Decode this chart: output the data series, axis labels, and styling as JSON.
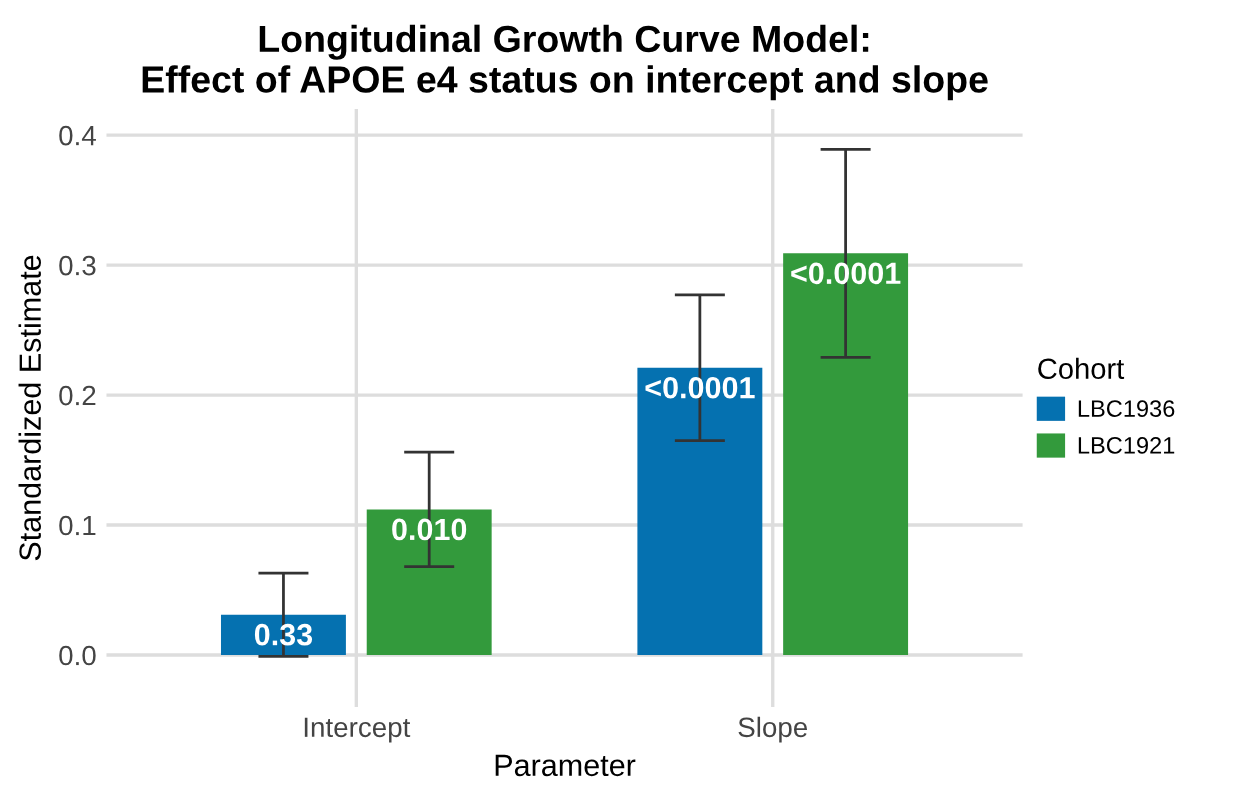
{
  "chart_data": {
    "type": "bar",
    "title": "Longitudinal Growth Curve Model:\nEffect of APOE e4 status on intercept and slope",
    "xlabel": "Parameter",
    "ylabel": "Standardized Estimate",
    "legend_title": "Cohort",
    "categories": [
      "Intercept",
      "Slope"
    ],
    "series": [
      {
        "name": "LBC1936",
        "color": "#0571b0",
        "values": [
          0.031,
          0.221
        ],
        "errors": [
          [
            -0.001,
            0.063
          ],
          [
            0.165,
            0.277
          ]
        ]
      },
      {
        "name": "LBC1921",
        "color": "#339a3c",
        "values": [
          0.112,
          0.309
        ],
        "errors": [
          [
            0.068,
            0.156
          ],
          [
            0.229,
            0.389
          ]
        ]
      }
    ],
    "annotations": [
      "0.33",
      "<0.0001",
      "0.010",
      "<0.0001"
    ],
    "ylim": [
      -0.04,
      0.42
    ],
    "yticks": [
      {
        "value": 0,
        "label": "0.0"
      },
      0.1,
      0.2,
      0.3,
      0.4
    ],
    "grid": true,
    "legend": "right"
  }
}
